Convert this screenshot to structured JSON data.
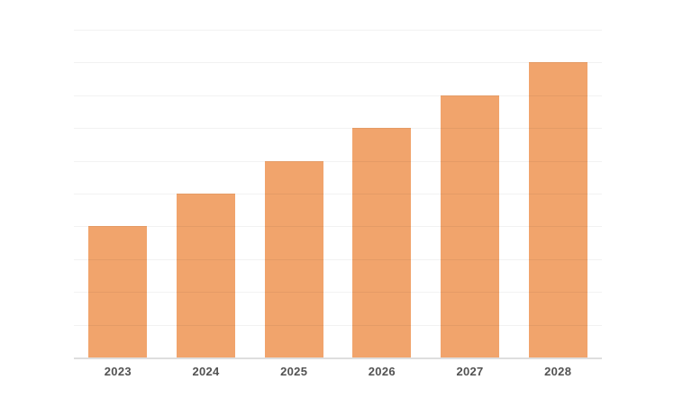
{
  "chart_data": {
    "type": "bar",
    "title": "",
    "xlabel": "",
    "ylabel": "",
    "categories": [
      "2023",
      "2024",
      "2025",
      "2026",
      "2027",
      "2028"
    ],
    "values": [
      4,
      5,
      6,
      7,
      8,
      9
    ],
    "ylim": [
      0,
      10
    ],
    "gridline_step": 1,
    "grid": "horizontal-only",
    "legend": "none",
    "y_tick_labels_visible": false,
    "colors": {
      "bar": "#f1a46c",
      "gridline": "rgba(0,0,0,0.05)",
      "axis_line": "#dedede",
      "tick_label": "#525252",
      "background": "#ffffff"
    }
  }
}
